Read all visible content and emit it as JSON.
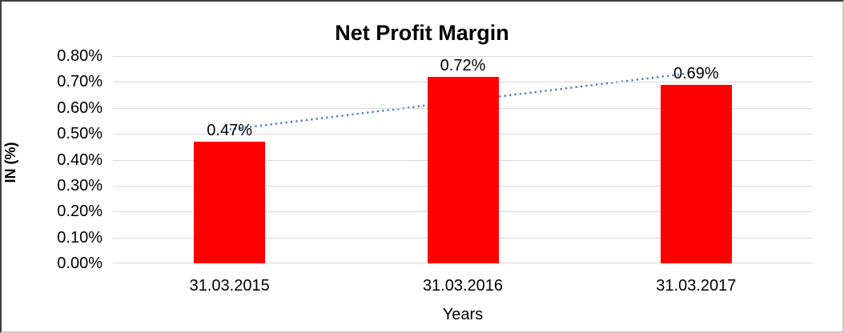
{
  "chart_data": {
    "type": "bar",
    "title": "Net Profit Margin",
    "xlabel": "Years",
    "ylabel": "IN (%)",
    "categories": [
      "31.03.2015",
      "31.03.2016",
      "31.03.2017"
    ],
    "values": [
      0.47,
      0.72,
      0.69
    ],
    "data_labels": [
      "0.47%",
      "0.72%",
      "0.69%"
    ],
    "ylim": [
      0,
      0.8
    ],
    "ytick_step": 0.1,
    "ytick_labels": [
      "0.00%",
      "0.10%",
      "0.20%",
      "0.30%",
      "0.40%",
      "0.50%",
      "0.60%",
      "0.70%",
      "0.80%"
    ],
    "grid": true,
    "legend": false,
    "colors": {
      "bar": "#ff0000",
      "trendline": "#4472c4",
      "gridline": "#d9d9d9",
      "text": "#000000"
    },
    "trendline": {
      "type": "linear",
      "style": "dotted"
    }
  }
}
